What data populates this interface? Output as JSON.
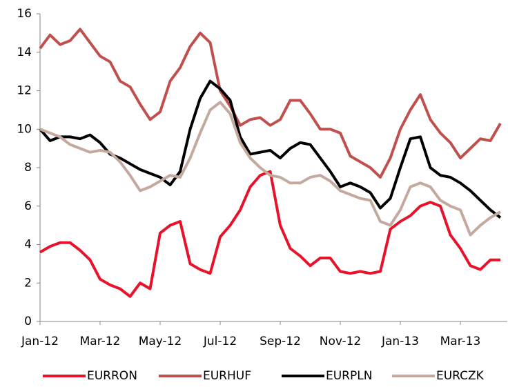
{
  "chart_data": {
    "type": "line",
    "categories": [
      "Jan-12",
      null,
      null,
      null,
      null,
      null,
      "Mar-12",
      null,
      null,
      null,
      null,
      null,
      "May-12",
      null,
      null,
      null,
      null,
      null,
      "Jul-12",
      null,
      null,
      null,
      null,
      null,
      "Sep-12",
      null,
      null,
      null,
      null,
      null,
      "Nov-12",
      null,
      null,
      null,
      null,
      null,
      "Jan-13",
      null,
      null,
      null,
      null,
      null,
      "Mar-13",
      null,
      null,
      null,
      null
    ],
    "series": [
      {
        "name": "EURRON",
        "color": "#e8132b",
        "values": [
          3.6,
          3.9,
          4.1,
          4.1,
          3.7,
          3.2,
          2.2,
          1.9,
          1.7,
          1.3,
          2.0,
          1.7,
          4.6,
          5.0,
          5.2,
          3.0,
          2.7,
          2.5,
          4.4,
          5.0,
          5.8,
          7.0,
          7.6,
          7.8,
          5.0,
          3.8,
          3.4,
          2.9,
          3.3,
          3.3,
          2.6,
          2.5,
          2.6,
          2.5,
          2.6,
          4.8,
          5.2,
          5.5,
          6.0,
          6.2,
          6.0,
          4.5,
          3.8,
          2.9,
          2.7,
          3.2,
          3.2
        ]
      },
      {
        "name": "EURHUF",
        "color": "#c0504d",
        "values": [
          14.2,
          14.9,
          14.4,
          14.6,
          15.2,
          14.5,
          13.8,
          13.5,
          12.5,
          12.2,
          11.3,
          10.5,
          10.9,
          12.5,
          13.2,
          14.3,
          15.0,
          14.5,
          12.0,
          11.2,
          10.2,
          10.5,
          10.6,
          10.2,
          10.5,
          11.5,
          11.5,
          10.8,
          10.0,
          10.0,
          9.8,
          8.6,
          8.3,
          8.0,
          7.5,
          8.5,
          10.0,
          11.0,
          11.8,
          10.5,
          9.8,
          9.3,
          8.5,
          9.0,
          9.5,
          9.4,
          10.3
        ]
      },
      {
        "name": "EURPLN",
        "color": "#000000",
        "values": [
          10.0,
          9.4,
          9.6,
          9.6,
          9.5,
          9.7,
          9.3,
          8.7,
          8.5,
          8.2,
          7.9,
          7.7,
          7.5,
          7.1,
          7.8,
          10.0,
          11.6,
          12.5,
          12.1,
          11.5,
          9.6,
          8.7,
          8.8,
          8.9,
          8.5,
          9.0,
          9.3,
          9.2,
          8.5,
          7.8,
          7.0,
          7.2,
          7.0,
          6.7,
          5.9,
          6.4,
          8.0,
          9.5,
          9.6,
          8.0,
          7.6,
          7.5,
          7.2,
          6.8,
          6.3,
          5.8,
          5.4
        ]
      },
      {
        "name": "EURCZK",
        "color": "#c4a99e",
        "values": [
          10.0,
          9.8,
          9.6,
          9.2,
          9.0,
          8.8,
          8.9,
          8.8,
          8.3,
          7.6,
          6.8,
          7.0,
          7.3,
          7.6,
          7.5,
          8.5,
          9.8,
          11.0,
          11.4,
          10.8,
          9.3,
          8.5,
          8.0,
          7.6,
          7.5,
          7.2,
          7.2,
          7.5,
          7.6,
          7.3,
          6.8,
          6.6,
          6.4,
          6.3,
          5.2,
          5.0,
          5.8,
          7.0,
          7.2,
          7.0,
          6.3,
          6.0,
          5.8,
          4.5,
          5.0,
          5.4,
          5.7
        ]
      }
    ],
    "ylim": [
      0,
      16
    ],
    "yticks": [
      0,
      2,
      4,
      6,
      8,
      10,
      12,
      14,
      16
    ],
    "grid": false,
    "legend": "bottom"
  }
}
